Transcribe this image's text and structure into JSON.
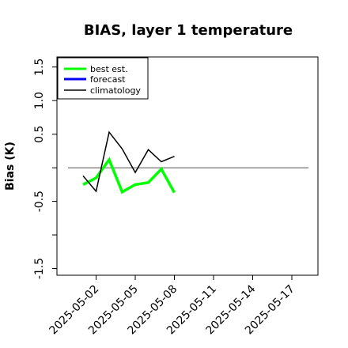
{
  "chart_data": {
    "type": "line",
    "title": "BIAS, layer 1 temperature",
    "xlabel": "",
    "ylabel": "Bias (K)",
    "x_ticks": [
      "2025-05-02",
      "2025-05-05",
      "2025-05-08",
      "2025-05-11",
      "2025-05-14",
      "2025-05-17"
    ],
    "x_tick_colors": [
      "#000000",
      "#000000",
      "#228b22",
      "#000000",
      "#000000",
      "#000000"
    ],
    "xlim": [
      "2025-04-29",
      "2025-05-19"
    ],
    "y_ticks": [
      "-1.5",
      "-0.5",
      "0.5",
      "1.0",
      "1.5"
    ],
    "y_tick_values": [
      -1.5,
      -0.5,
      0.5,
      1.0,
      1.5
    ],
    "ylim": [
      -1.6,
      1.65
    ],
    "zero_line": 0,
    "legend_position": "top-left",
    "series": [
      {
        "name": "best est.",
        "color": "#00ff00",
        "x": [
          "2025-05-01",
          "2025-05-02",
          "2025-05-03",
          "2025-05-04",
          "2025-05-05",
          "2025-05-06",
          "2025-05-07",
          "2025-05-08"
        ],
        "values": [
          -0.25,
          -0.15,
          0.12,
          -0.36,
          -0.25,
          -0.22,
          -0.02,
          -0.37
        ]
      },
      {
        "name": "forecast",
        "color": "#0000ff",
        "x": [],
        "values": []
      },
      {
        "name": "climatology",
        "color": "#000000",
        "x": [
          "2025-05-01",
          "2025-05-02",
          "2025-05-03",
          "2025-05-04",
          "2025-05-05",
          "2025-05-06",
          "2025-05-07",
          "2025-05-08"
        ],
        "values": [
          -0.12,
          -0.35,
          0.53,
          0.28,
          -0.07,
          0.27,
          0.09,
          0.17
        ]
      }
    ]
  }
}
